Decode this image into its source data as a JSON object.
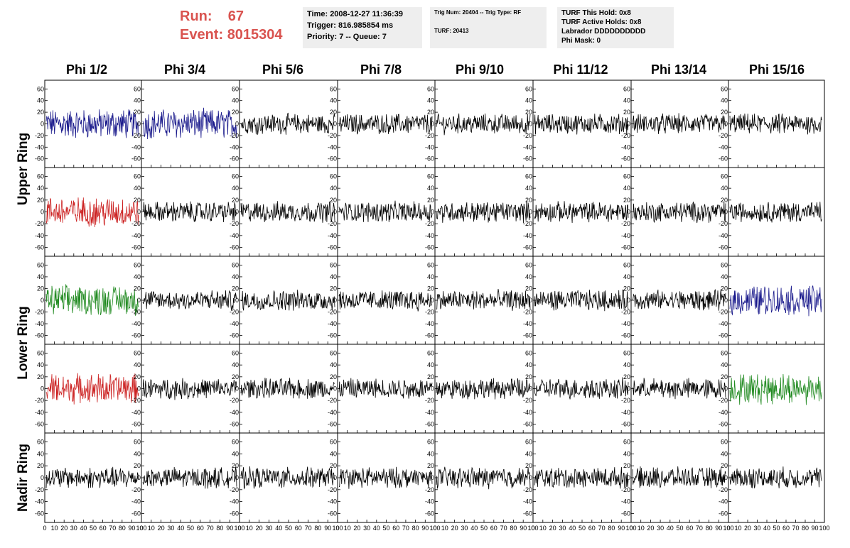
{
  "header": {
    "run_label": "Run:",
    "run_value": "67",
    "event_label": "Event:",
    "event_value": "8015304",
    "run_color": "#d9534f"
  },
  "info_box_1": {
    "time": "Time: 2008-12-27 11:36:39",
    "trigger": "Trigger: 816.985854 ms",
    "priority": "Priority: 7 -- Queue: 7"
  },
  "info_box_2": {
    "trig": "Trig Num: 20404 -- Trig Type: RF",
    "turf": "TURF: 20413"
  },
  "info_box_3": {
    "hold": "TURF This Hold: 0x8",
    "active": "TURF Active Holds: 0x8",
    "labrador": "Labrador DDDDDDDDDD",
    "phimask": "Phi Mask: 0"
  },
  "columns": [
    "Phi 1/2",
    "Phi 3/4",
    "Phi 5/6",
    "Phi 7/8",
    "Phi 9/10",
    "Phi 11/12",
    "Phi 13/14",
    "Phi 15/16"
  ],
  "rings": [
    {
      "label": "Upper Ring"
    },
    {
      "label": "Lower Ring"
    },
    {
      "label": "Nadir Ring"
    }
  ],
  "y_ticks": [
    "60",
    "40",
    "20",
    "0",
    "-20",
    "-40",
    "-60"
  ],
  "x_ticks": [
    "0",
    "10",
    "20",
    "30",
    "40",
    "50",
    "60",
    "70",
    "80",
    "90",
    "100"
  ],
  "trace_colors": {
    "default": "#000000",
    "blue": "#1a1a8c",
    "red": "#cc2222",
    "green": "#228b22"
  },
  "highlighted_traces": [
    {
      "row": 0,
      "col": 0,
      "color": "blue"
    },
    {
      "row": 0,
      "col": 1,
      "color": "blue"
    },
    {
      "row": 1,
      "col": 0,
      "color": "red"
    },
    {
      "row": 2,
      "col": 0,
      "color": "green"
    },
    {
      "row": 2,
      "col": 7,
      "color": "blue"
    },
    {
      "row": 3,
      "col": 0,
      "color": "red"
    },
    {
      "row": 3,
      "col": 7,
      "color": "green"
    }
  ]
}
